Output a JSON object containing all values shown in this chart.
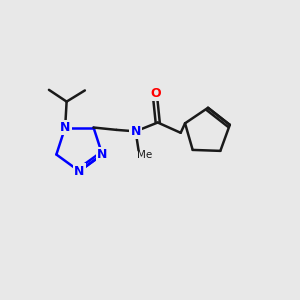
{
  "background_color": "#e8e8e8",
  "bond_color": "#1a1a1a",
  "N_color": "#0000ff",
  "O_color": "#ff0000",
  "line_width": 1.8,
  "font_size_atom": 9,
  "figsize": [
    3.0,
    3.0
  ],
  "dpi": 100,
  "xlim": [
    0,
    10
  ],
  "ylim": [
    0,
    10
  ]
}
